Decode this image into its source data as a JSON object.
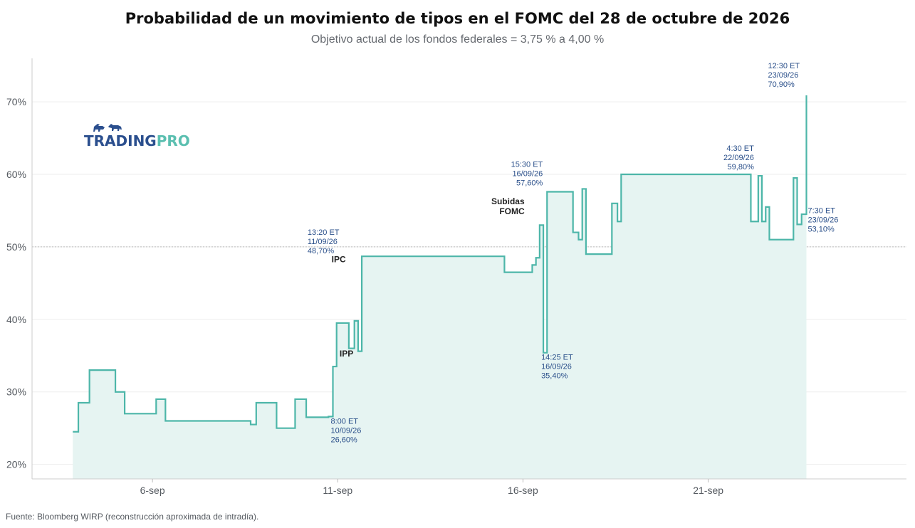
{
  "title": "Probabilidad de un movimiento de tipos en el FOMC del 28 de octubre de 2026",
  "subtitle": "Objetivo actual de los fondos federales = 3,75 % a 4,00 %",
  "source": "Fuente: Bloomberg WIRP (reconstrucción aproximada de intradía).",
  "logo": {
    "text_a": "TRADING",
    "text_b": "PRO",
    "icon": "bull-bear-icon",
    "color_a": "#2b4f8e",
    "color_b": "#5bbfb0"
  },
  "colors": {
    "line": "#4db6a9",
    "fill": "#e6f4f2",
    "annotation": "#2a4f8a",
    "grid": "#eeeeee",
    "refline": "#bbbbbb"
  },
  "chart_data": {
    "type": "area",
    "step": true,
    "x_unit": "days in September 2026",
    "xlim": [
      2.75,
      26.35
    ],
    "ylim": [
      18,
      76
    ],
    "y_ticks": [
      20,
      30,
      40,
      50,
      60,
      70
    ],
    "y_tick_labels": [
      "20%",
      "30%",
      "40%",
      "50%",
      "60%",
      "70%"
    ],
    "x_ticks": [
      6,
      11,
      16,
      21
    ],
    "x_tick_labels": [
      "6-sep",
      "11-sep",
      "16-sep",
      "21-sep"
    ],
    "reference_line": 50,
    "grid": true,
    "x": [
      3.85,
      4.0,
      4.3,
      5.0,
      5.25,
      6.1,
      6.35,
      8.65,
      8.8,
      9.35,
      9.85,
      10.15,
      10.75,
      10.87,
      10.97,
      11.3,
      11.45,
      11.55,
      11.65,
      15.5,
      16.25,
      16.35,
      16.45,
      16.55,
      16.65,
      17.35,
      17.5,
      17.6,
      17.7,
      18.4,
      18.55,
      18.65,
      22.15,
      22.35,
      22.45,
      22.55,
      22.65,
      23.3,
      23.4,
      23.52
    ],
    "y": [
      24.5,
      28.5,
      33.0,
      30.0,
      27.0,
      29.0,
      26.0,
      25.5,
      28.5,
      25.0,
      29.0,
      26.5,
      26.6,
      33.5,
      39.5,
      36.0,
      39.8,
      35.6,
      48.7,
      46.5,
      47.5,
      48.5,
      53.0,
      35.4,
      57.6,
      52.0,
      51.0,
      58.0,
      49.0,
      56.0,
      53.5,
      60.0,
      53.5,
      59.8,
      53.5,
      55.5,
      51.0,
      59.5,
      53.1,
      54.5
    ],
    "end": {
      "x": 23.65,
      "y": 70.9
    },
    "annotations": [
      {
        "x": 10.87,
        "y": 26.6,
        "lines": [
          "8:00 ET",
          "10/09/26",
          "26,60%"
        ],
        "pos": "below-right"
      },
      {
        "x": 11.55,
        "y": 48.7,
        "lines": [
          "13:20 ET",
          "11/09/26",
          "48,70%"
        ],
        "pos": "above-left"
      },
      {
        "x": 16.55,
        "y": 35.4,
        "lines": [
          "14:25 ET",
          "16/09/26",
          "35,40%"
        ],
        "pos": "below-right"
      },
      {
        "x": 16.65,
        "y": 57.6,
        "lines": [
          "15:30 ET",
          "16/09/26",
          "57,60%"
        ],
        "pos": "above-left"
      },
      {
        "x": 22.35,
        "y": 59.8,
        "lines": [
          "4:30 ET",
          "22/09/26",
          "59,80%"
        ],
        "pos": "above-left"
      },
      {
        "x": 23.65,
        "y": 53.1,
        "lines": [
          "7:30 ET",
          "23/09/26",
          "53,10%"
        ],
        "pos": "right"
      },
      {
        "x": 23.65,
        "y": 70.9,
        "lines": [
          "12:30 ET",
          "23/09/26",
          "70,90%"
        ],
        "pos": "above-left"
      }
    ],
    "events": [
      {
        "x": 11.05,
        "y": 33.5,
        "lines": [
          "IPP"
        ]
      },
      {
        "x": 11.45,
        "y": 46.5,
        "lines": [
          "IPC"
        ]
      },
      {
        "x": 16.35,
        "y": 54.5,
        "lines": [
          "Subidas",
          "FOMC"
        ]
      }
    ]
  }
}
